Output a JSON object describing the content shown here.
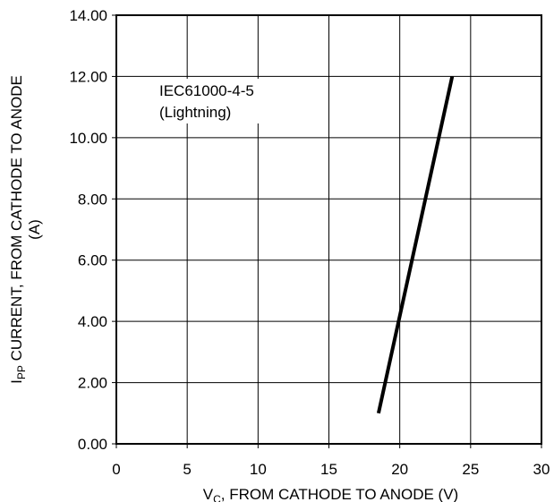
{
  "chart_data": {
    "type": "line",
    "title": "",
    "xlabel": {
      "main": "V",
      "sub": "C",
      "rest": ", FROM CATHODE TO ANODE (V)"
    },
    "ylabel": {
      "main": "I",
      "sub": "PP",
      "rest": " CURRENT, FROM CATHODE TO ANODE",
      "line2": "(A)"
    },
    "xlim": [
      0,
      30
    ],
    "ylim": [
      0,
      14
    ],
    "x_ticks": [
      "0",
      "5",
      "10",
      "15",
      "20",
      "25",
      "30"
    ],
    "y_ticks": [
      "0.00",
      "2.00",
      "4.00",
      "6.00",
      "8.00",
      "10.00",
      "12.00",
      "14.00"
    ],
    "grid": true,
    "annotation": {
      "line1": "IEC61000-4-5",
      "line2": "(Lightning)"
    },
    "series": [
      {
        "x": [
          18.5,
          23.7
        ],
        "y": [
          1.0,
          12.0
        ]
      }
    ],
    "line_color": "#000000"
  }
}
